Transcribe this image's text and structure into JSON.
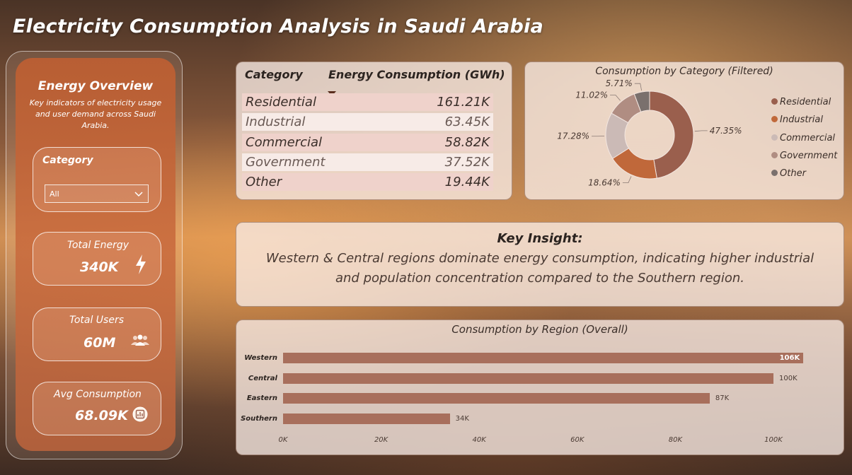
{
  "title": "Electricity Consumption Analysis in Saudi Arabia",
  "overview": {
    "title": "Energy Overview",
    "description": "Key indicators of electricity usage and user demand across Saudi Arabia."
  },
  "filter": {
    "label": "Category",
    "selected": "All"
  },
  "kpis": [
    {
      "label": "Total Energy",
      "value": "340K",
      "icon": "lightning-icon"
    },
    {
      "label": "Total Users",
      "value": "60M",
      "icon": "users-icon"
    },
    {
      "label": "Avg Consumption",
      "value": "68.09K",
      "icon": "gauge-icon"
    }
  ],
  "table": {
    "headers": [
      "Category",
      "Energy Consumption (GWh)"
    ],
    "rows": [
      [
        "Residential",
        "161.21K"
      ],
      [
        "Industrial",
        "63.45K"
      ],
      [
        "Commercial",
        "58.82K"
      ],
      [
        "Government",
        "37.52K"
      ],
      [
        "Other",
        "19.44K"
      ]
    ]
  },
  "insight": {
    "title": "Key Insight:",
    "text": "Western & Central regions dominate energy consumption, indicating higher industrial and population concentration compared to the Southern region."
  },
  "chart_data": [
    {
      "type": "pie",
      "title": "Consumption by Category (Filtered)",
      "labels": [
        "Residential",
        "Industrial",
        "Commercial",
        "Government",
        "Other"
      ],
      "values": [
        47.35,
        18.64,
        17.28,
        11.02,
        5.71
      ],
      "data_labels": [
        "47.35%",
        "18.64%",
        "17.28%",
        "11.02%",
        "5.71%"
      ],
      "colors": [
        "#9a5f4d",
        "#c0683a",
        "#cbbab6",
        "#b08d82",
        "#7a706d"
      ],
      "legend": "right"
    },
    {
      "type": "bar",
      "orientation": "horizontal",
      "title": "Consumption by Region (Overall)",
      "categories": [
        "Western",
        "Central",
        "Eastern",
        "Southern"
      ],
      "values": [
        106,
        100,
        87,
        34
      ],
      "data_labels": [
        "106K",
        "100K",
        "87K",
        "34K"
      ],
      "xticks": [
        "0K",
        "20K",
        "40K",
        "60K",
        "80K",
        "100K"
      ],
      "xlim": [
        0,
        106
      ],
      "color": "#a86f5c"
    }
  ]
}
